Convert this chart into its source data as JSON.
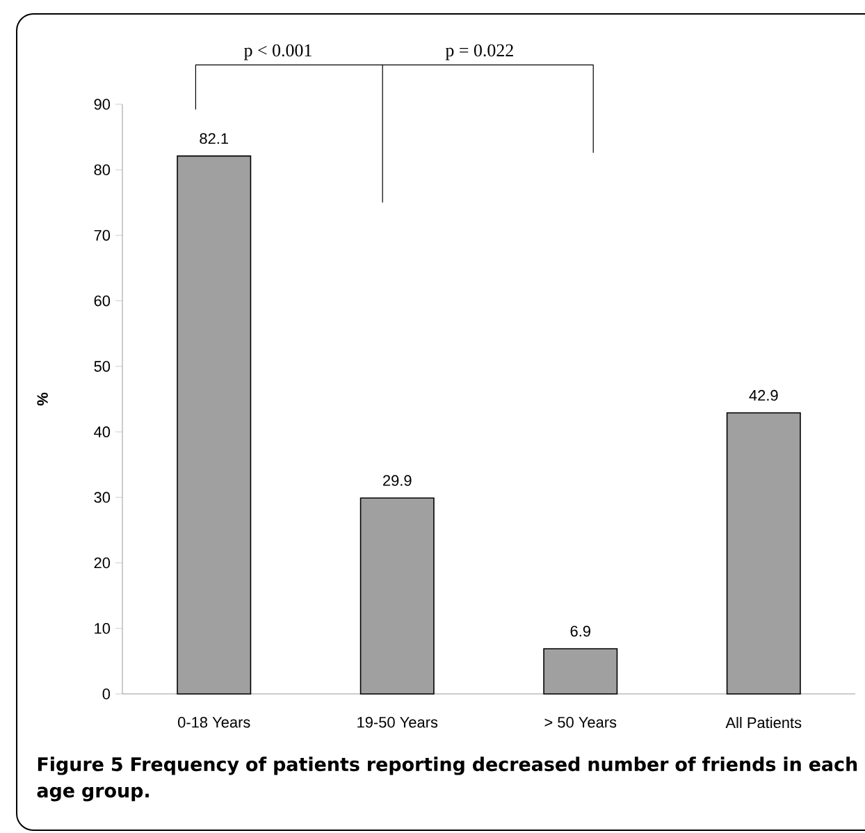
{
  "chart_data": {
    "type": "bar",
    "ylabel": "%",
    "categories": [
      "0-18 Years",
      "19-50 Years",
      "> 50 Years",
      "All Patients"
    ],
    "values": [
      82.1,
      29.9,
      6.9,
      42.9
    ],
    "color": "#a0a0a0",
    "ylim": [
      0,
      90
    ],
    "yticks": [
      0,
      10,
      20,
      30,
      40,
      50,
      60,
      70,
      80,
      90
    ],
    "data_labels": true,
    "annotations": [
      "p < 0.001",
      "p = 0.022",
      "Figure 5 Frequency of patients reporting decreased number of friends in each age group."
    ]
  }
}
